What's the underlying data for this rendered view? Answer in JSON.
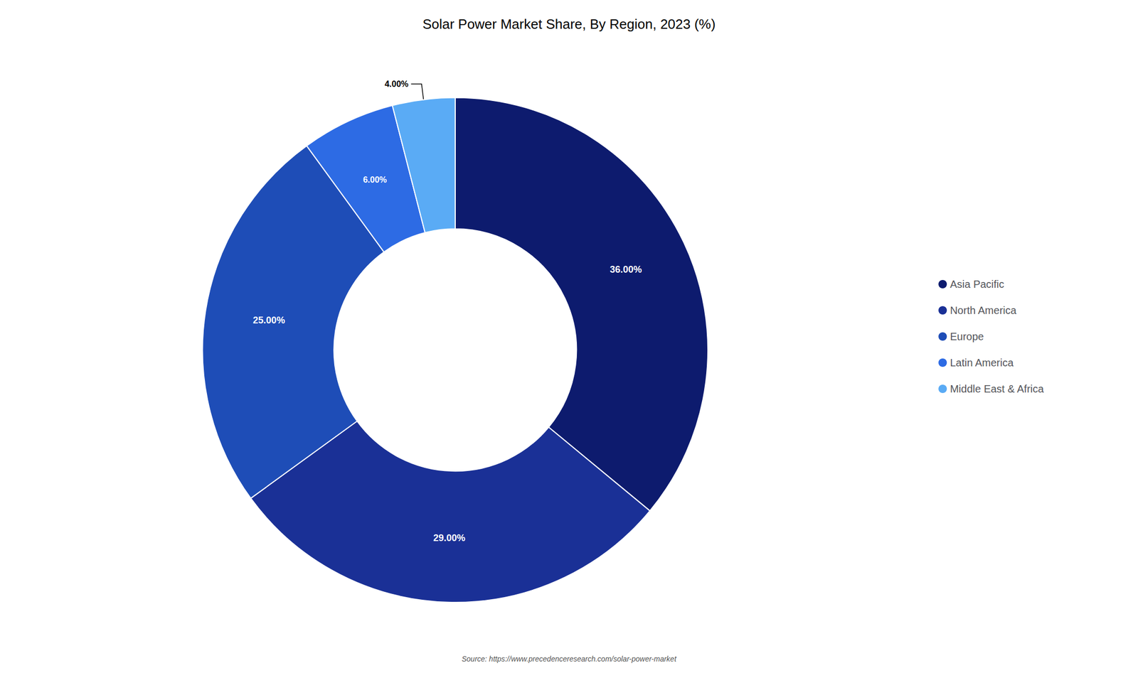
{
  "chart_data": {
    "type": "pie",
    "title": "Solar Power Market Share, By Region, 2023 (%)",
    "categories": [
      "Asia Pacific",
      "North America",
      "Europe",
      "Latin America",
      "Middle East & Africa"
    ],
    "values": [
      36,
      29,
      25,
      6,
      4
    ],
    "value_labels": [
      "36.00%",
      "29.00%",
      "25.00%",
      "6.00%",
      "4.00%"
    ],
    "colors": [
      "#0d1b6e",
      "#1a3096",
      "#1e4db7",
      "#2d6be4",
      "#5aabf5"
    ],
    "data_labels": true,
    "legend": "right",
    "annotations": [
      "Source: https://www.precedenceresearch.com/solar-power-market"
    ]
  }
}
